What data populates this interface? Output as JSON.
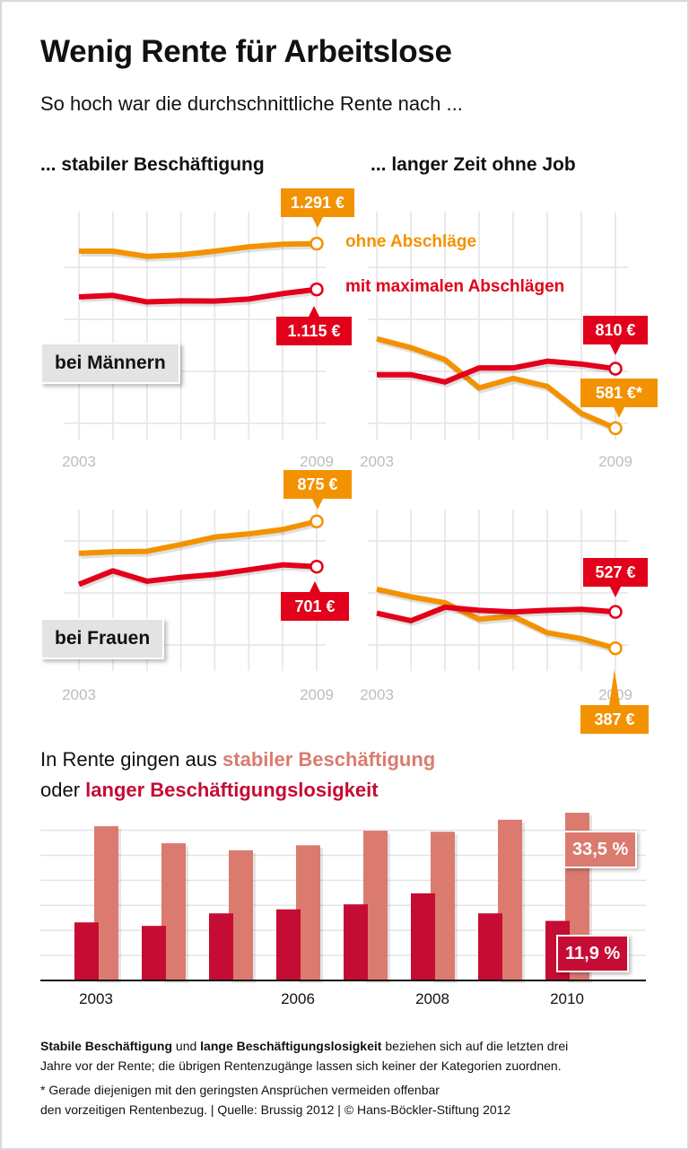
{
  "header": {
    "title": "Wenig Rente für Arbeitslose",
    "subtitle": "So hoch war die durchschnittliche Rente nach ...",
    "col_left": "... stabiler Beschäftigung",
    "col_right": "... langer Zeit ohne Job"
  },
  "colors": {
    "orange": "#f39200",
    "red": "#e2001a",
    "bar_light": "#db7b6f",
    "bar_dark": "#c50c34",
    "grid": "#e4e4e4"
  },
  "legend": {
    "ohne": "ohne Abschläge",
    "mit": "mit maximalen Abschlägen"
  },
  "chart_data": [
    {
      "type": "line",
      "column": "... stabiler Beschäftigung",
      "row_label": "bei Männern",
      "x_ticks": [
        "2003",
        "2009"
      ],
      "unit": "€",
      "ylim": [
        538,
        1414
      ],
      "grid": true,
      "series": [
        {
          "name": "ohne Abschläge",
          "color": "#f39200",
          "values": [
            1262,
            1262,
            1242,
            1248,
            1262,
            1279,
            1289,
            1291
          ],
          "end_label": "1.291 €"
        },
        {
          "name": "mit maximalen Abschlägen",
          "color": "#e2001a",
          "values": [
            1086,
            1092,
            1067,
            1071,
            1070,
            1078,
            1099,
            1115
          ],
          "end_label": "1.115 €"
        }
      ]
    },
    {
      "type": "line",
      "column": "... langer Zeit ohne Job",
      "row_label": "bei Männern",
      "x_ticks": [
        "2003",
        "2009"
      ],
      "unit": "€",
      "ylim": [
        538,
        1414
      ],
      "grid": true,
      "series": [
        {
          "name": "ohne Abschläge",
          "color": "#f39200",
          "values": [
            925,
            891,
            845,
            736,
            773,
            742,
            638,
            581
          ],
          "end_label": "581 €*"
        },
        {
          "name": "mit maximalen Abschlägen",
          "color": "#e2001a",
          "values": [
            787,
            787,
            759,
            813,
            813,
            839,
            828,
            810
          ],
          "end_label": "810 €"
        }
      ]
    },
    {
      "type": "line",
      "column": "... stabiler Beschäftigung",
      "row_label": "bei Frauen",
      "x_ticks": [
        "2003",
        "2009"
      ],
      "unit": "€",
      "ylim": [
        310,
        920
      ],
      "grid": true,
      "series": [
        {
          "name": "ohne Abschläge",
          "color": "#f39200",
          "values": [
            752,
            758,
            760,
            786,
            815,
            827,
            844,
            875
          ],
          "end_label": "875 €"
        },
        {
          "name": "mit maximalen Abschlägen",
          "color": "#e2001a",
          "values": [
            633,
            685,
            645,
            660,
            671,
            689,
            708,
            701
          ],
          "end_label": "701 €"
        }
      ]
    },
    {
      "type": "line",
      "column": "... langer Zeit ohne Job",
      "row_label": "bei Frauen",
      "x_ticks": [
        "2003",
        "2009"
      ],
      "unit": "€",
      "ylim": [
        310,
        920
      ],
      "grid": true,
      "series": [
        {
          "name": "ohne Abschläge",
          "color": "#f39200",
          "values": [
            614,
            585,
            562,
            499,
            510,
            447,
            424,
            387
          ],
          "end_label": "387 €"
        },
        {
          "name": "mit maximalen Abschlägen",
          "color": "#e2001a",
          "values": [
            522,
            493,
            545,
            533,
            527,
            533,
            537,
            527
          ],
          "end_label": "527 €"
        }
      ]
    },
    {
      "type": "bar",
      "title_prefix": "In Rente gingen aus ",
      "title_a": "stabiler Beschäftigung",
      "title_mid": "oder ",
      "title_b": "langer Beschäftigungslosigkeit",
      "categories": [
        "2003",
        "2004",
        "2005",
        "2006",
        "2007",
        "2008",
        "2009",
        "2010"
      ],
      "tick_labels": {
        "0": "2003",
        "3": "2006",
        "5": "2008",
        "7": "2010"
      },
      "unit": "%",
      "ylim": [
        0,
        33.5
      ],
      "grid": true,
      "series": [
        {
          "name": "langer Beschäftigungslosigkeit",
          "color": "#c50c34",
          "values": [
            11.6,
            10.9,
            13.4,
            14.2,
            15.2,
            17.4,
            13.4,
            11.9
          ]
        },
        {
          "name": "stabiler Beschäftigung",
          "color": "#db7b6f",
          "values": [
            30.8,
            27.4,
            26.0,
            27.0,
            29.9,
            29.7,
            32.1,
            33.5
          ]
        }
      ],
      "annotations": {
        "stable_2010": "33,5 %",
        "unemployed_2010": "11,9 %"
      }
    }
  ],
  "footer": {
    "bold_a": "Stabile Beschäftigung",
    "text_a": " und ",
    "bold_b": "lange Beschäftigungslosigkeit",
    "text_b": " beziehen sich auf die letzten drei",
    "line2": "Jahre vor der Rente; die übrigen Rentenzugänge lassen sich keiner der Kategorien zuordnen.",
    "note1": "* Gerade diejenigen mit den geringsten Ansprüchen vermeiden offenbar",
    "note2": "den vorzeitigen Rentenbezug.  |  Quelle: Brussig 2012 | © Hans-Böckler-Stiftung 2012"
  }
}
